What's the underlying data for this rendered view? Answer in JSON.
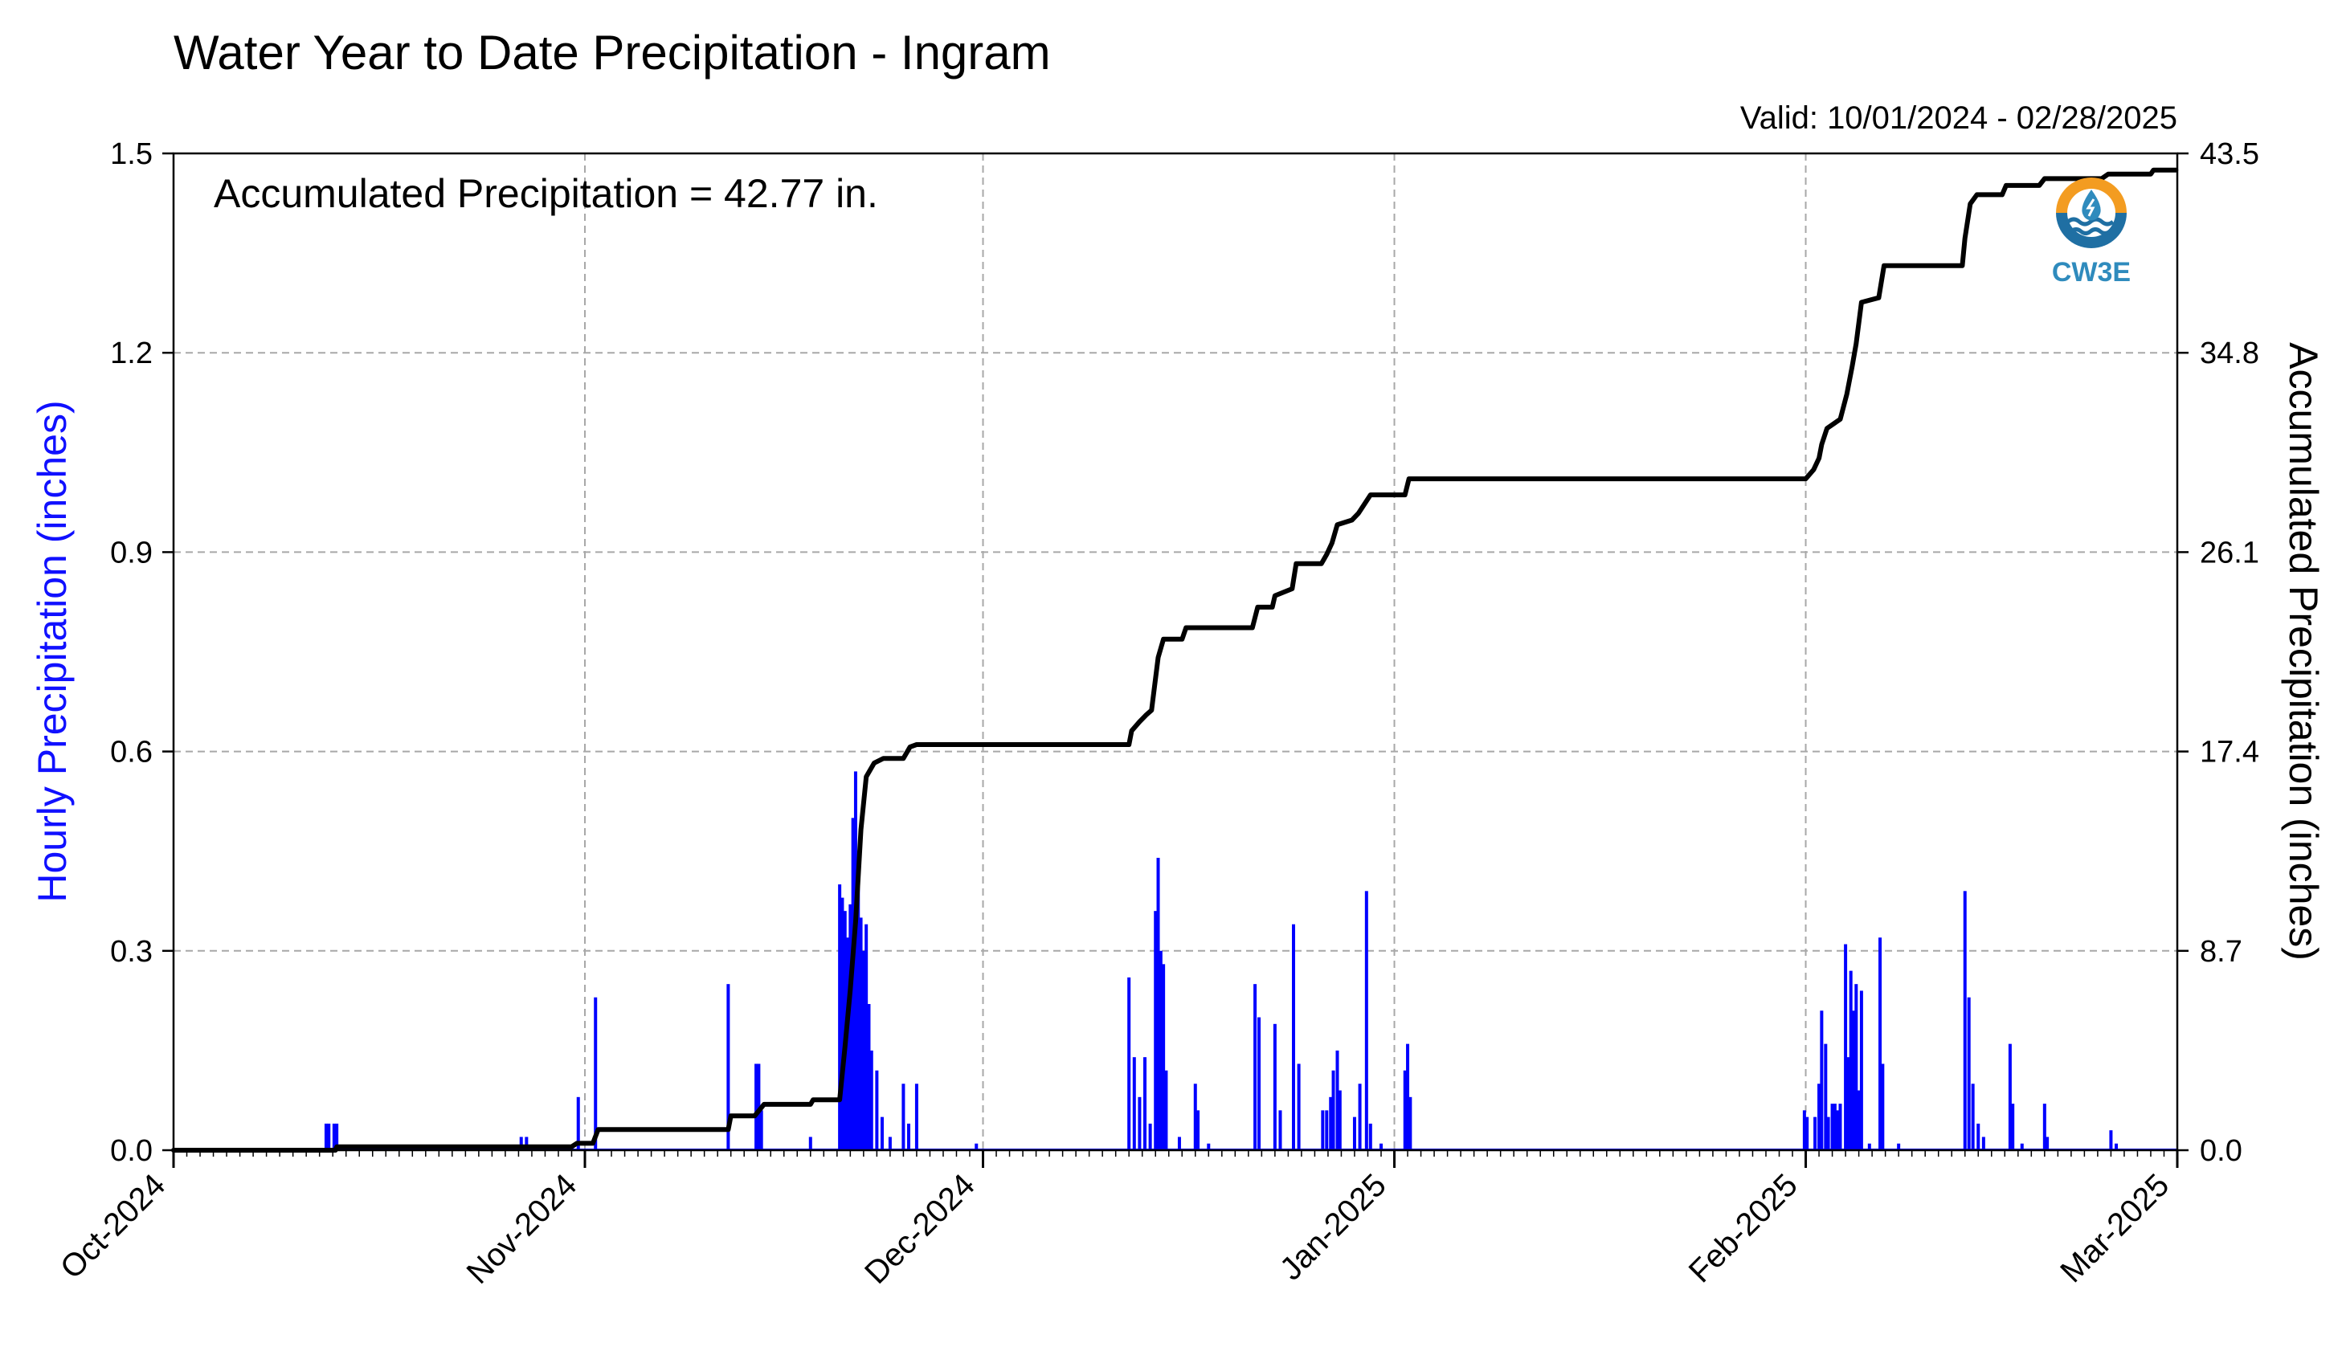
{
  "chart_data": {
    "type": "bar+line",
    "title": "Water Year to Date Precipitation - Ingram",
    "subtitle": "Valid: 10/01/2024 - 02/28/2025",
    "annotation": "Accumulated Precipitation = 42.77 in.",
    "ylabel_left": "Hourly Precipitation (inches)",
    "ylabel_right": "Accumulated Precipitation (inches)",
    "logo_text": "CW3E",
    "xlim_days": [
      0,
      151
    ],
    "ylim_left": [
      0,
      1.5
    ],
    "ylim_right": [
      0,
      43.5
    ],
    "yticks_left": [
      "0.0",
      "0.3",
      "0.6",
      "0.9",
      "1.2",
      "1.5"
    ],
    "yticks_right": [
      "0.0",
      "8.7",
      "17.4",
      "26.1",
      "34.8",
      "43.5"
    ],
    "xtick_days": [
      0,
      31,
      61,
      92,
      123,
      151
    ],
    "xtick_labels": [
      "Oct-2024",
      "Nov-2024",
      "Dec-2024",
      "Jan-2025",
      "Feb-2025",
      "Mar-2025"
    ],
    "grid": true,
    "colors": {
      "hourly": "#0000ff",
      "accumulated": "#000000",
      "grid": "#a8a8a8"
    },
    "series": [
      {
        "name": "Hourly Precipitation",
        "kind": "bar",
        "axis": "left",
        "points": [
          [
            11.5,
            0.04
          ],
          [
            11.7,
            0.04
          ],
          [
            12.1,
            0.04
          ],
          [
            12.3,
            0.04
          ],
          [
            26.2,
            0.02
          ],
          [
            26.6,
            0.02
          ],
          [
            30.5,
            0.08
          ],
          [
            31.8,
            0.23
          ],
          [
            41.8,
            0.25
          ],
          [
            43.9,
            0.13
          ],
          [
            44.1,
            0.13
          ],
          [
            44.3,
            0.06
          ],
          [
            48.0,
            0.02
          ],
          [
            50.2,
            0.4
          ],
          [
            50.4,
            0.38
          ],
          [
            50.6,
            0.36
          ],
          [
            50.8,
            0.32
          ],
          [
            51.0,
            0.37
          ],
          [
            51.2,
            0.5
          ],
          [
            51.4,
            0.57
          ],
          [
            51.6,
            0.4
          ],
          [
            51.8,
            0.35
          ],
          [
            52.0,
            0.3
          ],
          [
            52.2,
            0.34
          ],
          [
            52.4,
            0.22
          ],
          [
            52.6,
            0.15
          ],
          [
            53.0,
            0.12
          ],
          [
            53.4,
            0.05
          ],
          [
            54.0,
            0.02
          ],
          [
            55.0,
            0.1
          ],
          [
            55.4,
            0.04
          ],
          [
            56.0,
            0.1
          ],
          [
            60.5,
            0.01
          ],
          [
            72.0,
            0.26
          ],
          [
            72.4,
            0.14
          ],
          [
            72.8,
            0.08
          ],
          [
            73.2,
            0.14
          ],
          [
            73.6,
            0.04
          ],
          [
            74.0,
            0.36
          ],
          [
            74.2,
            0.44
          ],
          [
            74.4,
            0.3
          ],
          [
            74.6,
            0.28
          ],
          [
            74.8,
            0.12
          ],
          [
            75.8,
            0.02
          ],
          [
            77.0,
            0.1
          ],
          [
            77.2,
            0.06
          ],
          [
            78.0,
            0.01
          ],
          [
            81.5,
            0.25
          ],
          [
            81.8,
            0.2
          ],
          [
            83.0,
            0.19
          ],
          [
            83.4,
            0.06
          ],
          [
            84.4,
            0.34
          ],
          [
            84.8,
            0.13
          ],
          [
            86.6,
            0.06
          ],
          [
            86.9,
            0.06
          ],
          [
            87.2,
            0.08
          ],
          [
            87.4,
            0.12
          ],
          [
            87.7,
            0.15
          ],
          [
            87.9,
            0.09
          ],
          [
            89.0,
            0.05
          ],
          [
            89.4,
            0.1
          ],
          [
            89.9,
            0.39
          ],
          [
            90.2,
            0.04
          ],
          [
            91.0,
            0.01
          ],
          [
            92.8,
            0.12
          ],
          [
            93.0,
            0.16
          ],
          [
            93.2,
            0.08
          ],
          [
            122.9,
            0.06
          ],
          [
            123.1,
            0.05
          ],
          [
            123.7,
            0.05
          ],
          [
            124.0,
            0.1
          ],
          [
            124.2,
            0.21
          ],
          [
            124.5,
            0.16
          ],
          [
            124.7,
            0.05
          ],
          [
            125.0,
            0.07
          ],
          [
            125.2,
            0.07
          ],
          [
            125.4,
            0.06
          ],
          [
            125.6,
            0.07
          ],
          [
            126.0,
            0.31
          ],
          [
            126.2,
            0.14
          ],
          [
            126.4,
            0.27
          ],
          [
            126.6,
            0.21
          ],
          [
            126.8,
            0.25
          ],
          [
            127.0,
            0.09
          ],
          [
            127.2,
            0.24
          ],
          [
            127.8,
            0.01
          ],
          [
            128.6,
            0.32
          ],
          [
            128.8,
            0.13
          ],
          [
            130.0,
            0.01
          ],
          [
            135.0,
            0.39
          ],
          [
            135.3,
            0.23
          ],
          [
            135.6,
            0.1
          ],
          [
            136.0,
            0.04
          ],
          [
            136.4,
            0.02
          ],
          [
            138.4,
            0.16
          ],
          [
            138.6,
            0.07
          ],
          [
            139.3,
            0.01
          ],
          [
            141.0,
            0.07
          ],
          [
            141.2,
            0.02
          ],
          [
            146.0,
            0.03
          ],
          [
            146.4,
            0.01
          ]
        ]
      },
      {
        "name": "Accumulated Precipitation",
        "kind": "step-line",
        "axis": "right",
        "points": [
          [
            0,
            0.0
          ],
          [
            12.2,
            0.0
          ],
          [
            12.3,
            0.15
          ],
          [
            30.0,
            0.15
          ],
          [
            30.4,
            0.3
          ],
          [
            31.6,
            0.3
          ],
          [
            32.0,
            0.9
          ],
          [
            41.8,
            0.9
          ],
          [
            42.0,
            1.5
          ],
          [
            43.8,
            1.5
          ],
          [
            44.5,
            2.0
          ],
          [
            48.0,
            2.0
          ],
          [
            48.2,
            2.2
          ],
          [
            50.2,
            2.2
          ],
          [
            50.6,
            4.5
          ],
          [
            51.0,
            7.0
          ],
          [
            51.4,
            10.0
          ],
          [
            51.8,
            14.0
          ],
          [
            52.2,
            16.3
          ],
          [
            52.8,
            16.9
          ],
          [
            53.5,
            17.1
          ],
          [
            55.0,
            17.1
          ],
          [
            55.5,
            17.6
          ],
          [
            56.0,
            17.7
          ],
          [
            72.0,
            17.7
          ],
          [
            72.2,
            18.3
          ],
          [
            72.8,
            18.7
          ],
          [
            73.3,
            19.0
          ],
          [
            73.7,
            19.2
          ],
          [
            74.2,
            21.5
          ],
          [
            74.6,
            22.3
          ],
          [
            75.2,
            22.3
          ],
          [
            76.0,
            22.3
          ],
          [
            76.3,
            22.8
          ],
          [
            81.3,
            22.8
          ],
          [
            81.7,
            23.7
          ],
          [
            82.8,
            23.7
          ],
          [
            83.0,
            24.2
          ],
          [
            84.3,
            24.5
          ],
          [
            84.6,
            25.6
          ],
          [
            86.5,
            25.6
          ],
          [
            86.9,
            26.0
          ],
          [
            87.3,
            26.5
          ],
          [
            87.7,
            27.3
          ],
          [
            88.8,
            27.5
          ],
          [
            89.3,
            27.8
          ],
          [
            90.2,
            28.6
          ],
          [
            92.8,
            28.6
          ],
          [
            93.1,
            29.3
          ],
          [
            123.0,
            29.3
          ],
          [
            123.6,
            29.7
          ],
          [
            124.0,
            30.2
          ],
          [
            124.2,
            30.8
          ],
          [
            124.6,
            31.5
          ],
          [
            125.6,
            31.9
          ],
          [
            126.1,
            33.0
          ],
          [
            126.5,
            34.2
          ],
          [
            126.8,
            35.2
          ],
          [
            127.2,
            37.0
          ],
          [
            128.5,
            37.2
          ],
          [
            128.9,
            38.6
          ],
          [
            134.8,
            38.6
          ],
          [
            135.0,
            39.8
          ],
          [
            135.4,
            41.3
          ],
          [
            135.9,
            41.7
          ],
          [
            137.8,
            41.7
          ],
          [
            138.1,
            42.1
          ],
          [
            140.6,
            42.1
          ],
          [
            141.0,
            42.4
          ],
          [
            145.3,
            42.4
          ],
          [
            145.8,
            42.6
          ],
          [
            149.0,
            42.6
          ],
          [
            149.2,
            42.77
          ],
          [
            150.9,
            42.77
          ]
        ]
      }
    ]
  }
}
